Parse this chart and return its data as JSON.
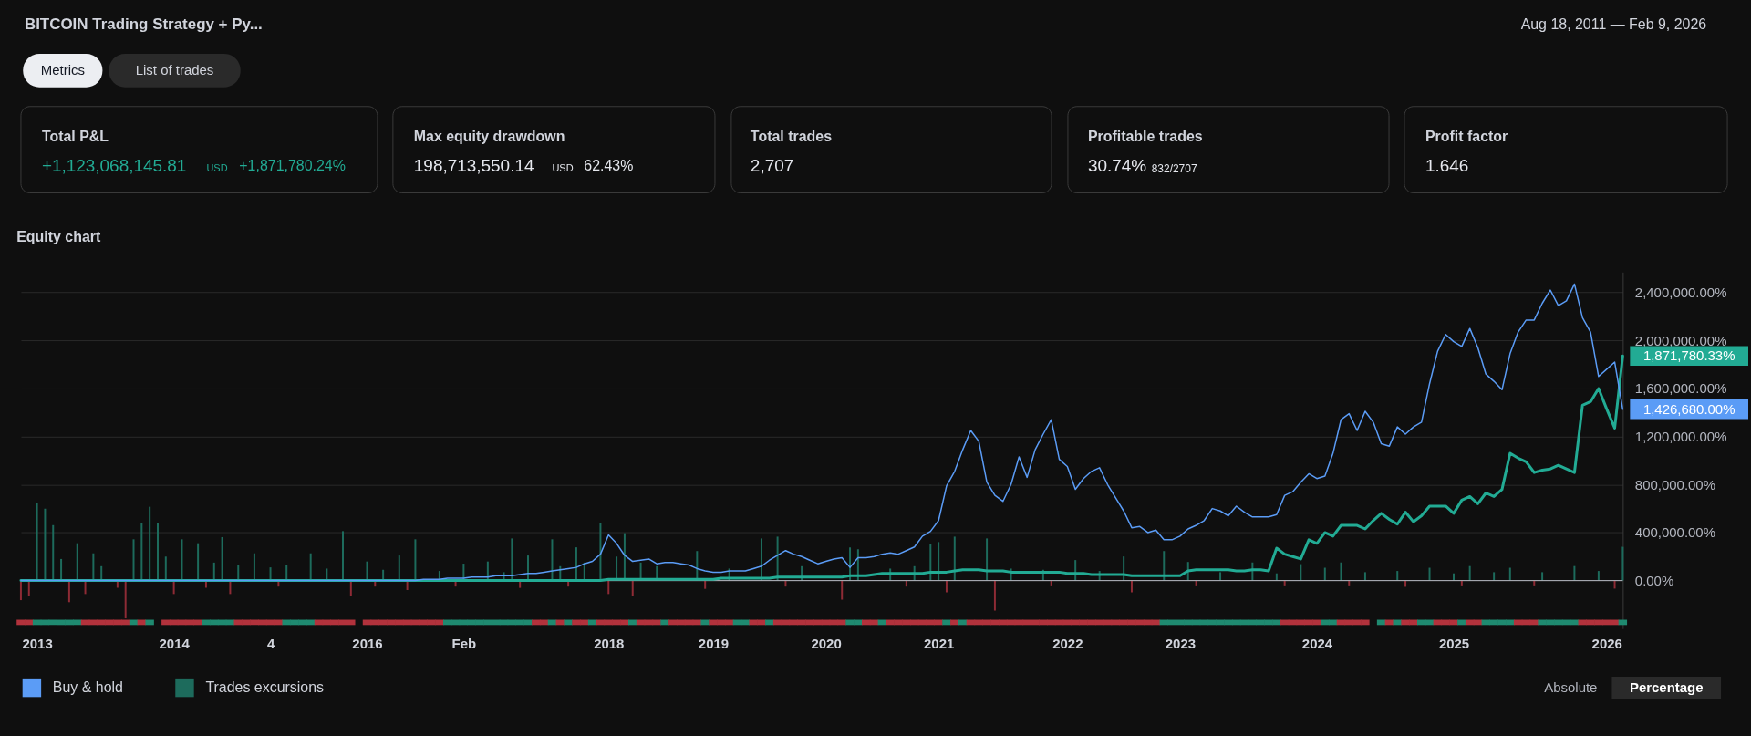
{
  "chart_data": [
    {
      "type": "other",
      "title": "BITCOIN Trading Strategy + Py...",
      "subtitle": "Aug 18, 2011 — Feb 9, 2026",
      "annotations": [
        "Metrics",
        "List of trades",
        "Total P&L",
        "+1,123,068,145.81",
        "USD",
        "+1,871,780.24%",
        "Max equity drawdown",
        "198,713,550.14",
        "USD",
        "62.43%",
        "Total trades",
        "2,707",
        "Profitable trades",
        "30.74%",
        "832/2707",
        "Profit factor",
        "1.646"
      ]
    },
    {
      "type": "line",
      "title": "Equity chart",
      "categories": [
        null,
        null,
        "2013",
        null,
        null,
        null,
        null,
        null,
        null,
        null,
        null,
        null,
        null,
        null,
        null,
        null,
        null,
        null,
        null,
        "2014",
        null,
        null,
        null,
        null,
        null,
        null,
        null,
        null,
        null,
        null,
        null,
        "4",
        null,
        null,
        null,
        null,
        null,
        null,
        null,
        null,
        null,
        null,
        null,
        "2016",
        null,
        null,
        null,
        null,
        null,
        null,
        null,
        null,
        null,
        null,
        null,
        "Feb",
        null,
        null,
        null,
        null,
        null,
        null,
        null,
        null,
        null,
        null,
        null,
        null,
        null,
        null,
        null,
        null,
        null,
        "2018",
        null,
        null,
        null,
        null,
        null,
        null,
        null,
        null,
        null,
        null,
        null,
        null,
        "2019",
        null,
        null,
        null,
        null,
        null,
        null,
        null,
        null,
        null,
        null,
        null,
        null,
        null,
        "2020",
        null,
        null,
        null,
        null,
        null,
        null,
        null,
        null,
        null,
        null,
        null,
        null,
        null,
        "2021",
        null,
        null,
        null,
        null,
        null,
        null,
        null,
        null,
        null,
        null,
        null,
        null,
        null,
        null,
        null,
        "2022",
        null,
        null,
        null,
        null,
        null,
        null,
        null,
        null,
        null,
        null,
        null,
        null,
        null,
        "2023",
        null,
        null,
        null,
        null,
        null,
        null,
        null,
        null,
        null,
        null,
        null,
        null,
        null,
        null,
        null,
        null,
        "2024",
        null,
        null,
        null,
        null,
        null,
        null,
        null,
        null,
        null,
        null,
        null,
        null,
        null,
        null,
        null,
        null,
        "2025",
        null,
        null,
        null,
        null,
        null,
        null,
        null,
        null,
        null,
        null,
        null,
        null,
        null,
        null,
        null,
        null,
        null,
        null,
        "2026",
        null,
        null
      ],
      "ylim": [
        -400000,
        2570000
      ],
      "yticks": [
        {
          "value": 0,
          "label": "0.00%"
        },
        {
          "value": 400000,
          "label": "400,000.00%"
        },
        {
          "value": 800000,
          "label": "800,000.00%"
        },
        {
          "value": 1200000,
          "label": "1,200,000.00%"
        },
        {
          "value": 1600000,
          "label": "1,600,000.00%"
        },
        {
          "value": 2000000,
          "label": "2,000,000.00%"
        },
        {
          "value": 2400000,
          "label": "2,400,000.00%"
        }
      ],
      "grid": "y",
      "legend": "bottom left",
      "series": [
        {
          "type": "line",
          "name": "Buy & hold",
          "color": "#5b9cf6",
          "values": [
            0,
            0,
            0,
            0,
            0,
            0,
            0,
            0,
            0,
            0,
            0,
            0,
            0,
            0,
            0,
            0,
            0,
            0,
            0,
            0,
            0,
            0,
            0,
            0,
            0,
            0,
            0,
            0,
            0,
            0,
            0,
            0,
            0,
            0,
            0,
            0,
            0,
            0,
            0,
            0,
            0,
            0,
            0,
            0,
            0,
            0,
            0,
            0,
            0,
            0,
            10000,
            10000,
            10000,
            20000,
            20000,
            20000,
            30000,
            30000,
            30000,
            40000,
            40000,
            40000,
            50000,
            60000,
            60000,
            70000,
            80000,
            90000,
            100000,
            110000,
            140000,
            160000,
            220000,
            380000,
            310000,
            210000,
            160000,
            170000,
            180000,
            140000,
            150000,
            150000,
            140000,
            130000,
            100000,
            80000,
            70000,
            70000,
            80000,
            80000,
            80000,
            100000,
            120000,
            170000,
            210000,
            250000,
            220000,
            200000,
            170000,
            140000,
            160000,
            180000,
            190000,
            110000,
            190000,
            190000,
            200000,
            220000,
            230000,
            220000,
            250000,
            280000,
            370000,
            410000,
            500000,
            790000,
            910000,
            1090000,
            1250000,
            1160000,
            820000,
            710000,
            660000,
            800000,
            1030000,
            860000,
            1090000,
            1220000,
            1340000,
            1010000,
            950000,
            760000,
            850000,
            910000,
            940000,
            800000,
            690000,
            580000,
            440000,
            450000,
            400000,
            420000,
            340000,
            340000,
            370000,
            430000,
            460000,
            500000,
            600000,
            580000,
            540000,
            620000,
            570000,
            530000,
            530000,
            530000,
            550000,
            710000,
            740000,
            820000,
            890000,
            850000,
            870000,
            1060000,
            1340000,
            1390000,
            1250000,
            1410000,
            1320000,
            1140000,
            1120000,
            1280000,
            1220000,
            1280000,
            1320000,
            1640000,
            1910000,
            2050000,
            1990000,
            1950000,
            2100000,
            1940000,
            1720000,
            1660000,
            1590000,
            1890000,
            2070000,
            2170000,
            2170000,
            2310000,
            2420000,
            2290000,
            2330000,
            2470000,
            2190000,
            2070000,
            1700000,
            1760000,
            1820000,
            1426680
          ],
          "value_labels": [
            null,
            null,
            null,
            null,
            null,
            null,
            null,
            null,
            null,
            null,
            null,
            null,
            null,
            null,
            null,
            null,
            null,
            null,
            null,
            null,
            null,
            null,
            null,
            null,
            null,
            null,
            null,
            null,
            null,
            null,
            null,
            null,
            null,
            null,
            null,
            null,
            null,
            null,
            null,
            null,
            null,
            null,
            null,
            null,
            null,
            null,
            null,
            null,
            null,
            null,
            null,
            null,
            null,
            null,
            null,
            null,
            null,
            null,
            null,
            null,
            null,
            null,
            null,
            null,
            null,
            null,
            null,
            null,
            null,
            null,
            null,
            null,
            null,
            null,
            null,
            null,
            null,
            null,
            null,
            null,
            null,
            null,
            null,
            null,
            null,
            null,
            null,
            null,
            null,
            null,
            null,
            null,
            null,
            null,
            null,
            null,
            null,
            null,
            null,
            null,
            null,
            null,
            null,
            null,
            null,
            null,
            null,
            null,
            null,
            null,
            null,
            null,
            null,
            null,
            null,
            null,
            null,
            null,
            null,
            null,
            null,
            null,
            null,
            null,
            null,
            null,
            null,
            null,
            null,
            null,
            null,
            null,
            null,
            null,
            null,
            null,
            null,
            null,
            null,
            null,
            null,
            null,
            null,
            null,
            null,
            null,
            null,
            null,
            null,
            null,
            null,
            null,
            null,
            null,
            null,
            null,
            null,
            null,
            null,
            null,
            null,
            null,
            null,
            null,
            null,
            null,
            null,
            null,
            null,
            null,
            null,
            null,
            null,
            null,
            null,
            null,
            null,
            null,
            null,
            null,
            null,
            null,
            null,
            null,
            null,
            null,
            null,
            null,
            null,
            null,
            null,
            null,
            null,
            null,
            null,
            null,
            null,
            null,
            null,
            "1,426,680.00%"
          ]
        },
        {
          "type": "line",
          "color": "#22ab94",
          "values": [
            0,
            0,
            0,
            0,
            0,
            0,
            0,
            0,
            0,
            0,
            0,
            0,
            0,
            0,
            0,
            0,
            0,
            0,
            0,
            0,
            0,
            0,
            0,
            0,
            0,
            0,
            0,
            0,
            0,
            0,
            0,
            0,
            0,
            0,
            0,
            0,
            0,
            0,
            0,
            0,
            0,
            0,
            0,
            0,
            0,
            0,
            0,
            0,
            0,
            0,
            0,
            0,
            0,
            0,
            0,
            0,
            0,
            0,
            0,
            0,
            0,
            0,
            0,
            0,
            0,
            0,
            0,
            0,
            0,
            0,
            0,
            0,
            0,
            10000,
            10000,
            10000,
            10000,
            10000,
            10000,
            10000,
            10000,
            10000,
            10000,
            10000,
            10000,
            10000,
            10000,
            20000,
            20000,
            20000,
            20000,
            20000,
            20000,
            20000,
            30000,
            30000,
            30000,
            30000,
            30000,
            30000,
            30000,
            30000,
            30000,
            40000,
            40000,
            40000,
            50000,
            60000,
            60000,
            60000,
            60000,
            60000,
            60000,
            70000,
            70000,
            70000,
            80000,
            90000,
            90000,
            90000,
            80000,
            80000,
            80000,
            70000,
            70000,
            70000,
            70000,
            70000,
            70000,
            70000,
            60000,
            60000,
            60000,
            50000,
            50000,
            50000,
            50000,
            50000,
            40000,
            40000,
            40000,
            40000,
            40000,
            40000,
            40000,
            80000,
            90000,
            90000,
            90000,
            90000,
            90000,
            80000,
            80000,
            90000,
            90000,
            80000,
            270000,
            220000,
            200000,
            180000,
            340000,
            310000,
            400000,
            370000,
            460000,
            460000,
            460000,
            430000,
            500000,
            560000,
            510000,
            470000,
            570000,
            490000,
            540000,
            620000,
            620000,
            620000,
            560000,
            670000,
            700000,
            640000,
            730000,
            700000,
            760000,
            1060000,
            1020000,
            990000,
            900000,
            920000,
            930000,
            960000,
            930000,
            900000,
            1460000,
            1490000,
            1600000,
            1430000,
            1270000,
            1871780.33
          ],
          "value_labels": [
            null,
            null,
            null,
            null,
            null,
            null,
            null,
            null,
            null,
            null,
            null,
            null,
            null,
            null,
            null,
            null,
            null,
            null,
            null,
            null,
            null,
            null,
            null,
            null,
            null,
            null,
            null,
            null,
            null,
            null,
            null,
            null,
            null,
            null,
            null,
            null,
            null,
            null,
            null,
            null,
            null,
            null,
            null,
            null,
            null,
            null,
            null,
            null,
            null,
            null,
            null,
            null,
            null,
            null,
            null,
            null,
            null,
            null,
            null,
            null,
            null,
            null,
            null,
            null,
            null,
            null,
            null,
            null,
            null,
            null,
            null,
            null,
            null,
            null,
            null,
            null,
            null,
            null,
            null,
            null,
            null,
            null,
            null,
            null,
            null,
            null,
            null,
            null,
            null,
            null,
            null,
            null,
            null,
            null,
            null,
            null,
            null,
            null,
            null,
            null,
            null,
            null,
            null,
            null,
            null,
            null,
            null,
            null,
            null,
            null,
            null,
            null,
            null,
            null,
            null,
            null,
            null,
            null,
            null,
            null,
            null,
            null,
            null,
            null,
            null,
            null,
            null,
            null,
            null,
            null,
            null,
            null,
            null,
            null,
            null,
            null,
            null,
            null,
            null,
            null,
            null,
            null,
            null,
            null,
            null,
            null,
            null,
            null,
            null,
            null,
            null,
            null,
            null,
            null,
            null,
            null,
            null,
            null,
            null,
            null,
            null,
            null,
            null,
            null,
            null,
            null,
            null,
            null,
            null,
            null,
            null,
            null,
            null,
            null,
            null,
            null,
            null,
            null,
            null,
            null,
            null,
            null,
            null,
            null,
            null,
            null,
            null,
            null,
            null,
            null,
            null,
            null,
            null,
            null,
            null,
            null,
            null,
            null,
            null,
            "1,871,780.33%"
          ]
        },
        {
          "type": "bar",
          "name": "Trades excursions",
          "color": "#1d6b5c",
          "values": [
            null,
            null,
            649000,
            599000,
            462000,
            180000,
            null,
            311000,
            null,
            227000,
            120000,
            null,
            null,
            null,
            344000,
            480000,
            615000,
            480000,
            200000,
            null,
            344000,
            null,
            311000,
            null,
            150000,
            362000,
            null,
            130000,
            null,
            227000,
            null,
            110000,
            null,
            130000,
            null,
            null,
            227000,
            null,
            100000,
            null,
            412000,
            null,
            null,
            159000,
            null,
            90000,
            null,
            209000,
            null,
            344000,
            null,
            null,
            80000,
            null,
            null,
            141000,
            null,
            null,
            159000,
            null,
            70000,
            351000,
            null,
            209000,
            null,
            null,
            344000,
            120000,
            null,
            277000,
            150000,
            null,
            480000,
            null,
            200000,
            395000,
            null,
            150000,
            null,
            120000,
            null,
            null,
            null,
            null,
            246000,
            null,
            null,
            null,
            100000,
            null,
            null,
            null,
            351000,
            null,
            366000,
            null,
            null,
            120000,
            null,
            null,
            null,
            null,
            null,
            276000,
            261000,
            null,
            null,
            null,
            100000,
            null,
            null,
            120000,
            null,
            306000,
            321000,
            null,
            366000,
            null,
            null,
            null,
            351000,
            null,
            null,
            100000,
            null,
            null,
            null,
            90000,
            null,
            null,
            null,
            171000,
            null,
            null,
            80000,
            null,
            null,
            201000,
            null,
            null,
            null,
            null,
            246000,
            null,
            null,
            155000,
            null,
            null,
            null,
            70000,
            null,
            null,
            null,
            151000,
            null,
            null,
            60000,
            null,
            null,
            137000,
            null,
            null,
            107000,
            null,
            151000,
            null,
            null,
            70000,
            null,
            null,
            null,
            80000,
            null,
            null,
            null,
            107000,
            null,
            null,
            60000,
            null,
            121000,
            null,
            null,
            70000,
            null,
            107000,
            null,
            null,
            null,
            70000,
            null,
            null,
            null,
            121000,
            null,
            null,
            80000,
            null,
            null,
            281000
          ]
        },
        {
          "type": "bar",
          "color": "#8e2b35",
          "values": [
            -163000,
            -129000,
            null,
            null,
            null,
            null,
            -180000,
            null,
            -112000,
            null,
            null,
            null,
            -60000,
            -315000,
            null,
            null,
            null,
            null,
            null,
            -112000,
            null,
            null,
            null,
            -60000,
            null,
            null,
            -112000,
            null,
            null,
            null,
            null,
            null,
            -50000,
            null,
            null,
            null,
            null,
            null,
            null,
            null,
            null,
            -129000,
            null,
            null,
            -50000,
            null,
            null,
            null,
            -79000,
            null,
            null,
            null,
            null,
            null,
            -50000,
            null,
            null,
            null,
            null,
            null,
            null,
            null,
            -61000,
            null,
            null,
            null,
            null,
            null,
            -50000,
            null,
            null,
            null,
            null,
            -112000,
            null,
            null,
            -129000,
            null,
            null,
            null,
            null,
            null,
            null,
            null,
            null,
            -69000,
            null,
            null,
            null,
            null,
            null,
            null,
            null,
            null,
            null,
            -50000,
            null,
            null,
            null,
            null,
            null,
            null,
            -159000,
            null,
            null,
            null,
            null,
            null,
            null,
            null,
            -50000,
            null,
            null,
            null,
            null,
            -98000,
            null,
            null,
            null,
            null,
            null,
            -250000,
            null,
            null,
            null,
            null,
            null,
            null,
            -40000,
            null,
            null,
            null,
            null,
            null,
            null,
            null,
            null,
            null,
            -98000,
            null,
            null,
            null,
            null,
            null,
            null,
            null,
            -40000,
            null,
            null,
            null,
            null,
            null,
            null,
            null,
            null,
            null,
            null,
            -40000,
            null,
            null,
            null,
            null,
            null,
            null,
            null,
            -40000,
            null,
            null,
            null,
            null,
            null,
            null,
            -52000,
            null,
            null,
            null,
            null,
            null,
            null,
            -40000,
            null,
            null,
            null,
            null,
            null,
            null,
            null,
            null,
            -40000,
            null,
            null,
            null,
            null,
            null,
            null,
            null,
            null,
            null,
            -67000,
            null
          ]
        },
        {
          "type": "bar",
          "base": [
            -370000,
            -370000,
            -370000,
            -370000,
            -370000,
            -370000,
            -370000,
            -370000,
            -370000,
            -370000,
            -370000,
            -370000,
            -370000,
            -370000,
            -370000,
            -370000,
            -370000,
            null,
            -370000,
            -370000,
            -370000,
            -370000,
            -370000,
            -370000,
            -370000,
            -370000,
            -370000,
            -370000,
            -370000,
            -370000,
            -370000,
            -370000,
            -370000,
            -370000,
            -370000,
            -370000,
            -370000,
            -370000,
            -370000,
            -370000,
            -370000,
            -370000,
            null,
            -370000,
            -370000,
            -370000,
            -370000,
            -370000,
            -370000,
            -370000,
            -370000,
            -370000,
            -370000,
            -370000,
            -370000,
            -370000,
            -370000,
            -370000,
            -370000,
            -370000,
            -370000,
            -370000,
            -370000,
            -370000,
            -370000,
            -370000,
            -370000,
            -370000,
            -370000,
            -370000,
            -370000,
            -370000,
            -370000,
            -370000,
            -370000,
            -370000,
            -370000,
            -370000,
            -370000,
            -370000,
            -370000,
            -370000,
            -370000,
            -370000,
            -370000,
            -370000,
            -370000,
            -370000,
            -370000,
            -370000,
            -370000,
            -370000,
            -370000,
            -370000,
            -370000,
            -370000,
            -370000,
            -370000,
            -370000,
            -370000,
            -370000,
            -370000,
            -370000,
            -370000,
            -370000,
            -370000,
            -370000,
            -370000,
            -370000,
            -370000,
            -370000,
            -370000,
            -370000,
            -370000,
            -370000,
            -370000,
            -370000,
            -370000,
            -370000,
            -370000,
            -370000,
            -370000,
            -370000,
            -370000,
            -370000,
            -370000,
            -370000,
            -370000,
            -370000,
            -370000,
            -370000,
            -370000,
            -370000,
            -370000,
            -370000,
            -370000,
            -370000,
            -370000,
            -370000,
            -370000,
            -370000,
            -370000,
            -370000,
            -370000,
            -370000,
            -370000,
            -370000,
            -370000,
            -370000,
            -370000,
            -370000,
            -370000,
            -370000,
            -370000,
            -370000,
            -370000,
            -370000,
            -370000,
            -370000,
            -370000,
            -370000,
            -370000,
            -370000,
            -370000,
            -370000,
            -370000,
            -370000,
            -370000,
            null,
            -370000,
            -370000,
            -370000,
            -370000,
            -370000,
            -370000,
            -370000,
            -370000,
            -370000,
            -370000,
            -370000,
            -370000,
            -370000,
            -370000,
            -370000,
            -370000,
            -370000,
            -370000,
            -370000,
            -370000,
            -370000,
            -370000,
            -370000,
            -370000,
            -370000,
            -370000,
            -370000,
            -370000,
            -370000,
            -370000,
            -370000
          ],
          "values": [
            44000,
            44000,
            44000,
            44000,
            44000,
            44000,
            44000,
            44000,
            44000,
            44000,
            44000,
            44000,
            44000,
            44000,
            44000,
            44000,
            44000,
            null,
            44000,
            44000,
            44000,
            44000,
            44000,
            44000,
            44000,
            44000,
            44000,
            44000,
            44000,
            44000,
            44000,
            44000,
            44000,
            44000,
            44000,
            44000,
            44000,
            44000,
            44000,
            44000,
            44000,
            44000,
            null,
            44000,
            44000,
            44000,
            44000,
            44000,
            44000,
            44000,
            44000,
            44000,
            44000,
            44000,
            44000,
            44000,
            44000,
            44000,
            44000,
            44000,
            44000,
            44000,
            44000,
            44000,
            44000,
            44000,
            44000,
            44000,
            44000,
            44000,
            44000,
            44000,
            44000,
            44000,
            44000,
            44000,
            44000,
            44000,
            44000,
            44000,
            44000,
            44000,
            44000,
            44000,
            44000,
            44000,
            44000,
            44000,
            44000,
            44000,
            44000,
            44000,
            44000,
            44000,
            44000,
            44000,
            44000,
            44000,
            44000,
            44000,
            44000,
            44000,
            44000,
            44000,
            44000,
            44000,
            44000,
            44000,
            44000,
            44000,
            44000,
            44000,
            44000,
            44000,
            44000,
            44000,
            44000,
            44000,
            44000,
            44000,
            44000,
            44000,
            44000,
            44000,
            44000,
            44000,
            44000,
            44000,
            44000,
            44000,
            44000,
            44000,
            44000,
            44000,
            44000,
            44000,
            44000,
            44000,
            44000,
            44000,
            44000,
            44000,
            44000,
            44000,
            44000,
            44000,
            44000,
            44000,
            44000,
            44000,
            44000,
            44000,
            44000,
            44000,
            44000,
            44000,
            44000,
            44000,
            44000,
            44000,
            44000,
            44000,
            44000,
            44000,
            44000,
            44000,
            44000,
            44000,
            null,
            44000,
            44000,
            44000,
            44000,
            44000,
            44000,
            44000,
            44000,
            44000,
            44000,
            44000,
            44000,
            44000,
            44000,
            44000,
            44000,
            44000,
            44000,
            44000,
            44000,
            44000,
            44000,
            44000,
            44000,
            44000,
            44000,
            44000,
            44000,
            44000,
            44000,
            44000
          ],
          "colors": [
            "#b2323c",
            "#b2323c",
            "#1f8a70",
            "#1f8a70",
            "#1f8a70",
            "#1f8a70",
            "#1f8a70",
            "#1f8a70",
            "#b2323c",
            "#b2323c",
            "#b2323c",
            "#b2323c",
            "#b2323c",
            "#b2323c",
            "#1f8a70",
            "#b2323c",
            "#1f8a70",
            null,
            "#b2323c",
            "#b2323c",
            "#b2323c",
            "#b2323c",
            "#b2323c",
            "#1f8a70",
            "#1f8a70",
            "#1f8a70",
            "#1f8a70",
            "#b2323c",
            "#b2323c",
            "#b2323c",
            "#b2323c",
            "#b2323c",
            "#b2323c",
            "#1f8a70",
            "#1f8a70",
            "#1f8a70",
            "#1f8a70",
            "#b2323c",
            "#b2323c",
            "#b2323c",
            "#b2323c",
            "#b2323c",
            null,
            "#b2323c",
            "#b2323c",
            "#b2323c",
            "#b2323c",
            "#b2323c",
            "#b2323c",
            "#b2323c",
            "#b2323c",
            "#b2323c",
            "#b2323c",
            "#1f8a70",
            "#1f8a70",
            "#1f8a70",
            "#1f8a70",
            "#1f8a70",
            "#1f8a70",
            "#1f8a70",
            "#1f8a70",
            "#1f8a70",
            "#1f8a70",
            "#1f8a70",
            "#b2323c",
            "#b2323c",
            "#1f8a70",
            "#b2323c",
            "#1f8a70",
            "#b2323c",
            "#b2323c",
            "#1f8a70",
            "#b2323c",
            "#b2323c",
            "#b2323c",
            "#b2323c",
            "#1f8a70",
            "#b2323c",
            "#b2323c",
            "#b2323c",
            "#1f8a70",
            "#b2323c",
            "#b2323c",
            "#b2323c",
            "#b2323c",
            "#1f8a70",
            "#b2323c",
            "#b2323c",
            "#b2323c",
            "#1f8a70",
            "#1f8a70",
            "#b2323c",
            "#b2323c",
            "#1f8a70",
            "#b2323c",
            "#b2323c",
            "#b2323c",
            "#b2323c",
            "#b2323c",
            "#b2323c",
            "#b2323c",
            "#b2323c",
            "#b2323c",
            "#1f8a70",
            "#1f8a70",
            "#b2323c",
            "#b2323c",
            "#1f8a70",
            "#b2323c",
            "#b2323c",
            "#b2323c",
            "#b2323c",
            "#b2323c",
            "#b2323c",
            "#b2323c",
            "#1f8a70",
            "#b2323c",
            "#1f8a70",
            "#b2323c",
            "#b2323c",
            "#b2323c",
            "#b2323c",
            "#b2323c",
            "#b2323c",
            "#b2323c",
            "#b2323c",
            "#b2323c",
            "#b2323c",
            "#b2323c",
            "#b2323c",
            "#b2323c",
            "#b2323c",
            "#b2323c",
            "#b2323c",
            "#b2323c",
            "#b2323c",
            "#b2323c",
            "#b2323c",
            "#b2323c",
            "#b2323c",
            "#b2323c",
            "#b2323c",
            "#1f8a70",
            "#1f8a70",
            "#1f8a70",
            "#1f8a70",
            "#1f8a70",
            "#1f8a70",
            "#1f8a70",
            "#1f8a70",
            "#1f8a70",
            "#1f8a70",
            "#1f8a70",
            "#1f8a70",
            "#1f8a70",
            "#1f8a70",
            "#1f8a70",
            "#b2323c",
            "#b2323c",
            "#b2323c",
            "#b2323c",
            "#b2323c",
            "#1f8a70",
            "#1f8a70",
            "#b2323c",
            "#b2323c",
            "#b2323c",
            "#b2323c",
            null,
            "#1f8a70",
            "#b2323c",
            "#1f8a70",
            "#b2323c",
            "#b2323c",
            "#1f8a70",
            "#1f8a70",
            "#b2323c",
            "#b2323c",
            "#b2323c",
            "#1f8a70",
            "#b2323c",
            "#b2323c",
            "#1f8a70",
            "#1f8a70",
            "#1f8a70",
            "#1f8a70",
            "#b2323c",
            "#b2323c",
            "#b2323c",
            "#1f8a70",
            "#1f8a70",
            "#1f8a70",
            "#1f8a70",
            "#1f8a70",
            "#b2323c",
            "#b2323c",
            "#b2323c",
            "#b2323c",
            "#b2323c",
            "#1f8a70"
          ]
        }
      ],
      "ref_lines": [
        {
          "axis": "y",
          "value": 0,
          "color": "#b2b5be"
        }
      ],
      "annotations": [
        "Absolute",
        "Percentage"
      ]
    }
  ]
}
